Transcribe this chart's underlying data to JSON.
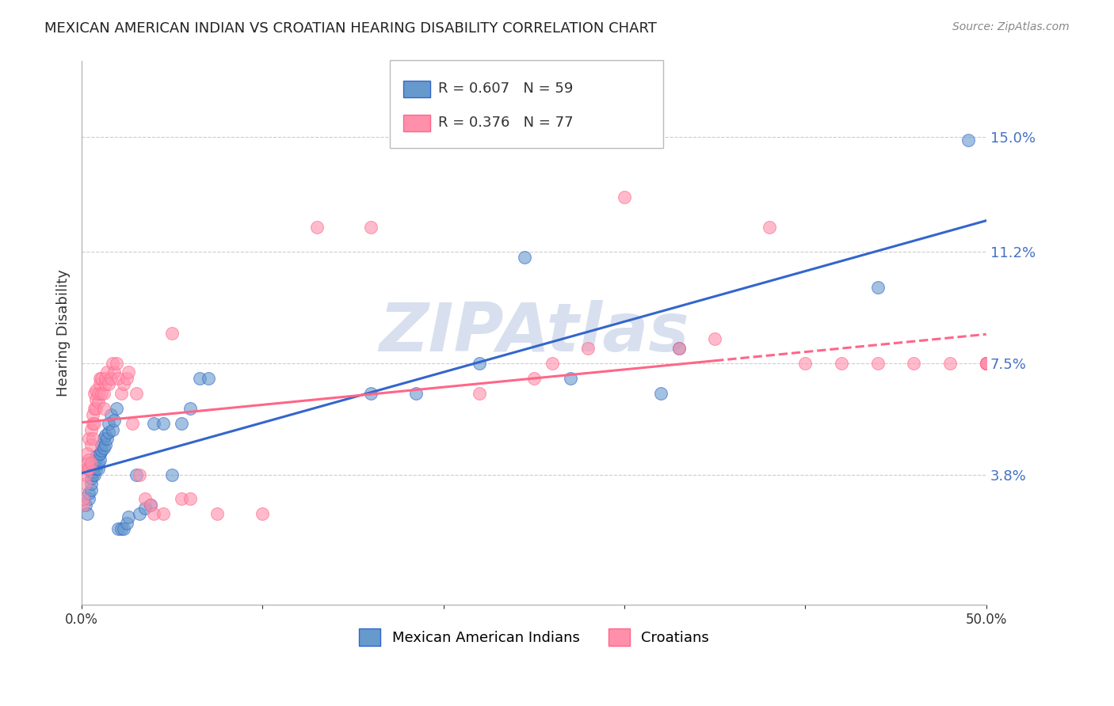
{
  "title": "MEXICAN AMERICAN INDIAN VS CROATIAN HEARING DISABILITY CORRELATION CHART",
  "source": "Source: ZipAtlas.com",
  "ylabel": "Hearing Disability",
  "yticks": [
    0.038,
    0.075,
    0.112,
    0.15
  ],
  "ytick_labels": [
    "3.8%",
    "7.5%",
    "11.2%",
    "15.0%"
  ],
  "xlim": [
    0.0,
    0.5
  ],
  "ylim": [
    -0.005,
    0.175
  ],
  "blue_R": 0.607,
  "blue_N": 59,
  "pink_R": 0.376,
  "pink_N": 77,
  "blue_color": "#6699CC",
  "pink_color": "#FF8FAB",
  "blue_line_color": "#3366CC",
  "pink_line_color": "#FF6688",
  "watermark": "ZIPAtlas",
  "watermark_color": "#AABBDD",
  "legend_label_blue": "Mexican American Indians",
  "legend_label_pink": "Croatians",
  "blue_x": [
    0.002,
    0.003,
    0.004,
    0.004,
    0.005,
    0.005,
    0.005,
    0.006,
    0.006,
    0.006,
    0.007,
    0.007,
    0.007,
    0.008,
    0.008,
    0.008,
    0.009,
    0.009,
    0.01,
    0.01,
    0.01,
    0.011,
    0.011,
    0.012,
    0.012,
    0.013,
    0.013,
    0.014,
    0.015,
    0.015,
    0.016,
    0.017,
    0.018,
    0.019,
    0.02,
    0.022,
    0.023,
    0.025,
    0.026,
    0.03,
    0.032,
    0.035,
    0.038,
    0.04,
    0.045,
    0.05,
    0.055,
    0.06,
    0.065,
    0.07,
    0.16,
    0.185,
    0.22,
    0.245,
    0.27,
    0.32,
    0.33,
    0.44,
    0.49
  ],
  "blue_y": [
    0.028,
    0.025,
    0.03,
    0.032,
    0.033,
    0.035,
    0.037,
    0.038,
    0.039,
    0.04,
    0.038,
    0.041,
    0.042,
    0.04,
    0.043,
    0.044,
    0.04,
    0.042,
    0.045,
    0.043,
    0.045,
    0.046,
    0.048,
    0.047,
    0.05,
    0.048,
    0.051,
    0.05,
    0.052,
    0.055,
    0.058,
    0.053,
    0.056,
    0.06,
    0.02,
    0.02,
    0.02,
    0.022,
    0.024,
    0.038,
    0.025,
    0.027,
    0.028,
    0.055,
    0.055,
    0.038,
    0.055,
    0.06,
    0.07,
    0.07,
    0.065,
    0.065,
    0.075,
    0.11,
    0.07,
    0.065,
    0.08,
    0.1,
    0.149
  ],
  "pink_x": [
    0.001,
    0.001,
    0.002,
    0.002,
    0.003,
    0.003,
    0.003,
    0.004,
    0.004,
    0.004,
    0.005,
    0.005,
    0.005,
    0.006,
    0.006,
    0.006,
    0.007,
    0.007,
    0.007,
    0.008,
    0.008,
    0.008,
    0.009,
    0.009,
    0.01,
    0.01,
    0.011,
    0.011,
    0.012,
    0.012,
    0.013,
    0.013,
    0.014,
    0.015,
    0.016,
    0.017,
    0.018,
    0.019,
    0.02,
    0.022,
    0.023,
    0.025,
    0.026,
    0.028,
    0.03,
    0.032,
    0.035,
    0.038,
    0.04,
    0.045,
    0.05,
    0.055,
    0.06,
    0.075,
    0.1,
    0.13,
    0.16,
    0.22,
    0.25,
    0.26,
    0.28,
    0.3,
    0.33,
    0.35,
    0.38,
    0.4,
    0.42,
    0.44,
    0.46,
    0.48,
    0.5,
    0.5,
    0.5,
    0.5,
    0.5,
    0.5,
    0.5
  ],
  "pink_y": [
    0.028,
    0.03,
    0.035,
    0.038,
    0.04,
    0.042,
    0.045,
    0.04,
    0.043,
    0.05,
    0.042,
    0.048,
    0.053,
    0.05,
    0.055,
    0.058,
    0.055,
    0.06,
    0.065,
    0.06,
    0.063,
    0.066,
    0.062,
    0.065,
    0.068,
    0.07,
    0.065,
    0.07,
    0.06,
    0.065,
    0.068,
    0.07,
    0.072,
    0.068,
    0.07,
    0.075,
    0.072,
    0.075,
    0.07,
    0.065,
    0.068,
    0.07,
    0.072,
    0.055,
    0.065,
    0.038,
    0.03,
    0.028,
    0.025,
    0.025,
    0.085,
    0.03,
    0.03,
    0.025,
    0.025,
    0.12,
    0.12,
    0.065,
    0.07,
    0.075,
    0.08,
    0.13,
    0.08,
    0.083,
    0.12,
    0.075,
    0.075,
    0.075,
    0.075,
    0.075,
    0.075,
    0.075,
    0.075,
    0.075,
    0.075,
    0.075,
    0.075
  ]
}
